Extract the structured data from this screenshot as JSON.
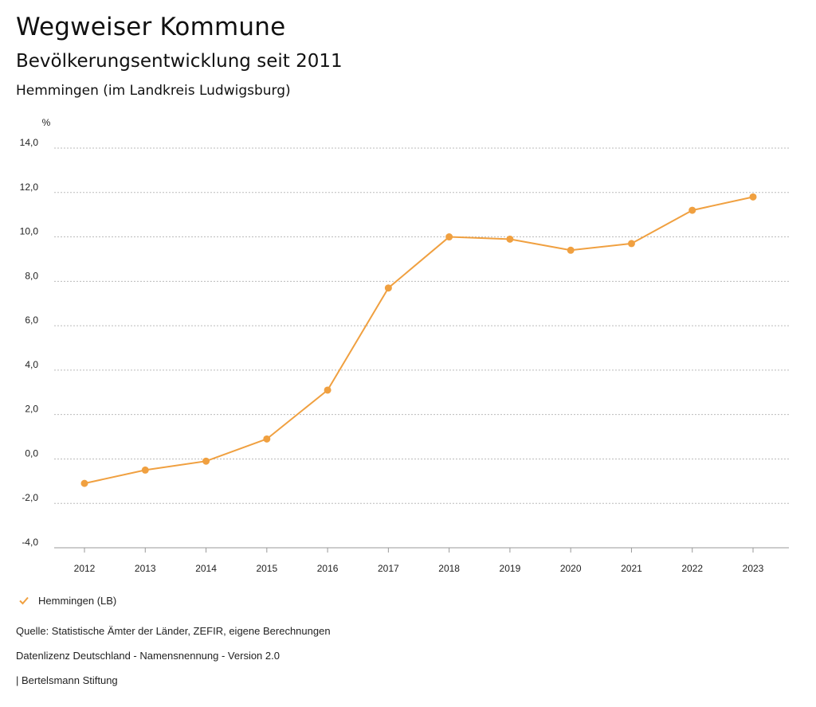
{
  "header": {
    "title": "Wegweiser Kommune",
    "subtitle": "Bevölkerungsentwicklung seit 2011",
    "location": "Hemmingen (im Landkreis Ludwigsburg)"
  },
  "chart_data": {
    "type": "line",
    "unit_label": "%",
    "categories": [
      "2012",
      "2013",
      "2014",
      "2015",
      "2016",
      "2017",
      "2018",
      "2019",
      "2020",
      "2021",
      "2022",
      "2023"
    ],
    "series": [
      {
        "name": "Hemmingen (LB)",
        "color": "#f0a040",
        "values": [
          -1.1,
          -0.5,
          -0.1,
          0.9,
          3.1,
          7.7,
          10.0,
          9.9,
          9.4,
          9.7,
          11.2,
          11.8
        ]
      }
    ],
    "yticks": [
      "14,0",
      "12,0",
      "10,0",
      "8,0",
      "6,0",
      "4,0",
      "2,0",
      "0,0",
      "-2,0",
      "-4,0"
    ],
    "ylim": [
      -4,
      14
    ],
    "grid": true,
    "legend_position": "bottom-left"
  },
  "legend": {
    "label": "Hemmingen (LB)"
  },
  "footer": {
    "source": "Quelle: Statistische Ämter der Länder, ZEFIR, eigene Berechnungen",
    "license": "Datenlizenz Deutschland - Namensnennung - Version 2.0",
    "publisher": "| Bertelsmann Stiftung"
  }
}
